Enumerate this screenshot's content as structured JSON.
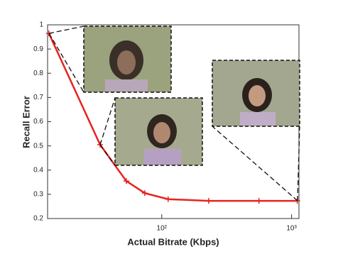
{
  "chart_data": {
    "type": "line",
    "xlabel": "Actual Bitrate (Kbps)",
    "ylabel": "Recall Error",
    "x": [
      13.5,
      33.5,
      53.3,
      74,
      112,
      230,
      561,
      1107
    ],
    "series": [
      {
        "name": "Recall Error",
        "color": "#e8231f",
        "values": [
          0.965,
          0.505,
          0.355,
          0.305,
          0.28,
          0.273,
          0.273,
          0.273
        ]
      }
    ],
    "xlim": [
      13.2,
      1140
    ],
    "ylim": [
      0.2,
      1
    ],
    "xscale": "log",
    "xticks": [
      {
        "value": 100,
        "label": "10²"
      },
      {
        "value": 1000,
        "label": "10³"
      }
    ],
    "yticks": [
      0.2,
      0.3,
      0.4,
      0.5,
      0.6,
      0.7,
      0.8,
      0.9,
      1
    ]
  }
}
